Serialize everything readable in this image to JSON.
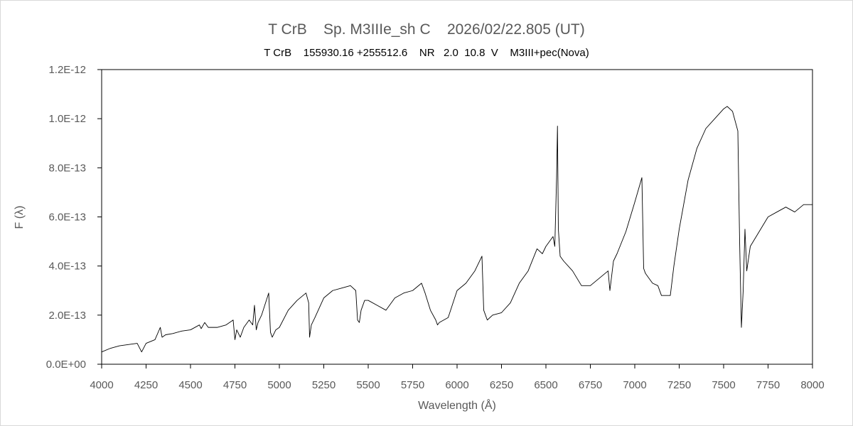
{
  "chart_data": {
    "type": "line",
    "title": "T CrB    Sp. M3IIIe_sh C    2026/02/22.805 (UT)",
    "subtitle": "T CrB    155930.16 +255512.6    NR   2.0  10.8  V    M3III+pec(Nova)",
    "xlabel": "Wavelength (Å)",
    "ylabel": "F (λ)",
    "xlim": [
      4000,
      8000
    ],
    "ylim": [
      0,
      1.2e-12
    ],
    "x_ticks": [
      4000,
      4250,
      4500,
      4750,
      5000,
      5250,
      5500,
      5750,
      6000,
      6250,
      6500,
      6750,
      7000,
      7250,
      7500,
      7750,
      8000
    ],
    "x_tick_labels": [
      "4000",
      "4250",
      "4500",
      "4750",
      "5000",
      "5250",
      "5500",
      "5750",
      "6000",
      "6250",
      "6500",
      "6750",
      "7000",
      "7250",
      "7500",
      "7750",
      "8000"
    ],
    "y_ticks": [
      0,
      2e-13,
      4e-13,
      6e-13,
      8e-13,
      1e-12,
      1.2e-12
    ],
    "y_tick_labels": [
      "0.0E+00",
      "2.0E-13",
      "4.0E-13",
      "6.0E-13",
      "8.0E-13",
      "1.0E-12",
      "1.2E-12"
    ],
    "grid": false,
    "line_color": "#000000",
    "series": [
      {
        "x": [
          4000,
          4050,
          4100,
          4150,
          4200,
          4225,
          4250,
          4300,
          4330,
          4340,
          4360,
          4400,
          4450,
          4500,
          4550,
          4560,
          4580,
          4600,
          4650,
          4700,
          4740,
          4750,
          4760,
          4780,
          4800,
          4830,
          4850,
          4860,
          4870,
          4880,
          4900,
          4940,
          4950,
          4960,
          4980,
          5000,
          5050,
          5100,
          5150,
          5165,
          5170,
          5180,
          5200,
          5250,
          5300,
          5350,
          5400,
          5430,
          5440,
          5450,
          5460,
          5480,
          5500,
          5550,
          5600,
          5650,
          5700,
          5750,
          5800,
          5820,
          5850,
          5880,
          5890,
          5900,
          5950,
          6000,
          6050,
          6100,
          6140,
          6150,
          6160,
          6170,
          6200,
          6250,
          6300,
          6350,
          6400,
          6450,
          6480,
          6500,
          6540,
          6550,
          6560,
          6565,
          6570,
          6580,
          6600,
          6650,
          6700,
          6750,
          6800,
          6850,
          6860,
          6880,
          6900,
          6950,
          7000,
          7040,
          7050,
          7060,
          7080,
          7100,
          7130,
          7150,
          7200,
          7220,
          7250,
          7300,
          7350,
          7400,
          7450,
          7500,
          7520,
          7550,
          7580,
          7590,
          7600,
          7610,
          7620,
          7630,
          7650,
          7700,
          7750,
          7800,
          7850,
          7900,
          7950,
          8000
        ],
        "y": [
          5e-14,
          6.5e-14,
          7.5e-14,
          8e-14,
          8.5e-14,
          5e-14,
          8.5e-14,
          1e-13,
          1.5e-13,
          1.1e-13,
          1.2e-13,
          1.25e-13,
          1.35e-13,
          1.4e-13,
          1.6e-13,
          1.45e-13,
          1.7e-13,
          1.5e-13,
          1.5e-13,
          1.6e-13,
          1.8e-13,
          1e-13,
          1.4e-13,
          1.1e-13,
          1.5e-13,
          1.8e-13,
          1.6e-13,
          2.4e-13,
          1.4e-13,
          1.7e-13,
          2e-13,
          2.9e-13,
          1.3e-13,
          1.1e-13,
          1.4e-13,
          1.5e-13,
          2.2e-13,
          2.6e-13,
          2.9e-13,
          2.5e-13,
          1.1e-13,
          1.6e-13,
          1.9e-13,
          2.7e-13,
          3e-13,
          3.1e-13,
          3.2e-13,
          3e-13,
          1.8e-13,
          1.7e-13,
          2.2e-13,
          2.6e-13,
          2.6e-13,
          2.4e-13,
          2.2e-13,
          2.7e-13,
          2.9e-13,
          3e-13,
          3.3e-13,
          2.9e-13,
          2.2e-13,
          1.8e-13,
          1.6e-13,
          1.7e-13,
          1.9e-13,
          3e-13,
          3.3e-13,
          3.8e-13,
          4.4e-13,
          2.2e-13,
          2e-13,
          1.8e-13,
          2e-13,
          2.1e-13,
          2.5e-13,
          3.3e-13,
          3.8e-13,
          4.7e-13,
          4.5e-13,
          4.8e-13,
          5.2e-13,
          4.8e-13,
          7.6e-13,
          9.7e-13,
          5.5e-13,
          4.4e-13,
          4.2e-13,
          3.8e-13,
          3.2e-13,
          3.2e-13,
          3.5e-13,
          3.8e-13,
          3e-13,
          4.2e-13,
          4.5e-13,
          5.4e-13,
          6.6e-13,
          7.6e-13,
          3.9e-13,
          3.7e-13,
          3.5e-13,
          3.3e-13,
          3.2e-13,
          2.8e-13,
          2.8e-13,
          4e-13,
          5.5e-13,
          7.5e-13,
          8.8e-13,
          9.6e-13,
          1e-12,
          1.04e-12,
          1.05e-12,
          1.03e-12,
          9.5e-13,
          5e-13,
          1.5e-13,
          3e-13,
          5.5e-13,
          3.8e-13,
          4.8e-13,
          5.4e-13,
          6e-13,
          6.2e-13,
          6.4e-13,
          6.2e-13,
          6.5e-13,
          6.5e-13
        ]
      }
    ]
  }
}
